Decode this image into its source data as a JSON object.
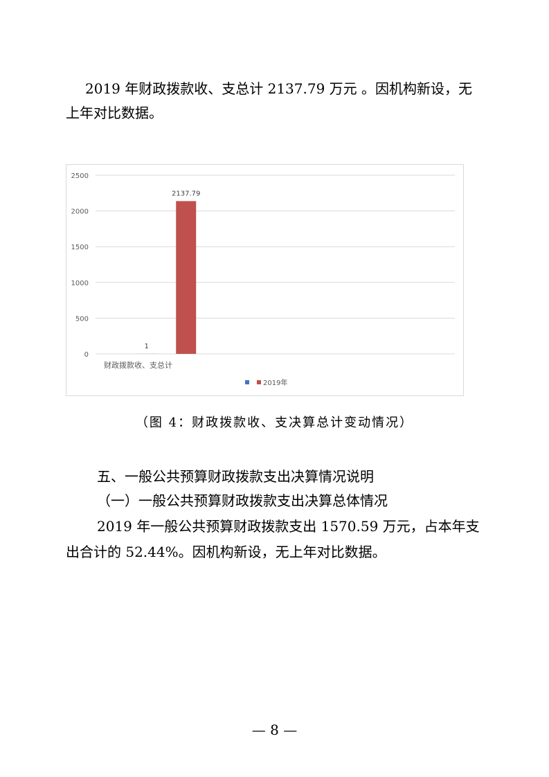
{
  "paragraph1": {
    "line1": "2019 年财政拨款收、支总计 2137.79 万元 。因机构新设，无",
    "line2": "上年对比数据。"
  },
  "chart_data": {
    "type": "bar",
    "categories": [
      "财政拨款收、支总计"
    ],
    "series": [
      {
        "name": "",
        "values": [
          1
        ],
        "color": "#4472c4",
        "data_labels": [
          "1"
        ]
      },
      {
        "name": "2019年",
        "values": [
          2137.79
        ],
        "color": "#c0504d",
        "data_labels": [
          "2137.79"
        ]
      }
    ],
    "yticks": [
      "0",
      "500",
      "1000",
      "1500",
      "2000",
      "2500"
    ],
    "ylim": [
      0,
      2500
    ],
    "grid": true,
    "legend_position": "bottom"
  },
  "caption": "（图 4：财政拨款收、支决算总计变动情况）",
  "section": {
    "heading": "五、一般公共预算财政拨款支出决算情况说明",
    "subheading": "（一）一般公共预算财政拨款支出决算总体情况",
    "line1": "2019 年一般公共预算财政拨款支出 1570.59 万元，占本年支",
    "line2": "出合计的 52.44%。因机构新设，无上年对比数据。"
  },
  "page_number": "— 8 —"
}
